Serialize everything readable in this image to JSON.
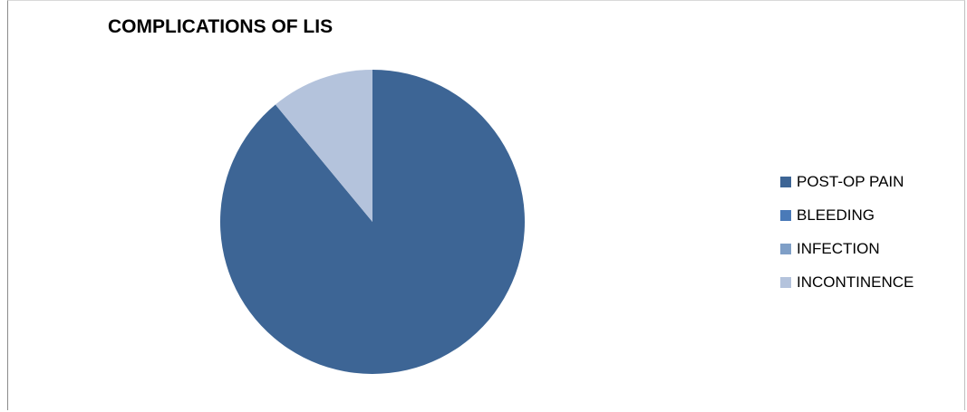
{
  "chart_data": {
    "type": "pie",
    "title": "COMPLICATIONS OF LIS",
    "categories": [
      "POST-OP PAIN",
      "BLEEDING",
      "INFECTION",
      "INCONTINENCE"
    ],
    "values": [
      89,
      0,
      0,
      11
    ],
    "colors": [
      "#3d6595",
      "#4a7ab8",
      "#7f9fc7",
      "#b4c3dc"
    ],
    "legend_position": "right"
  }
}
